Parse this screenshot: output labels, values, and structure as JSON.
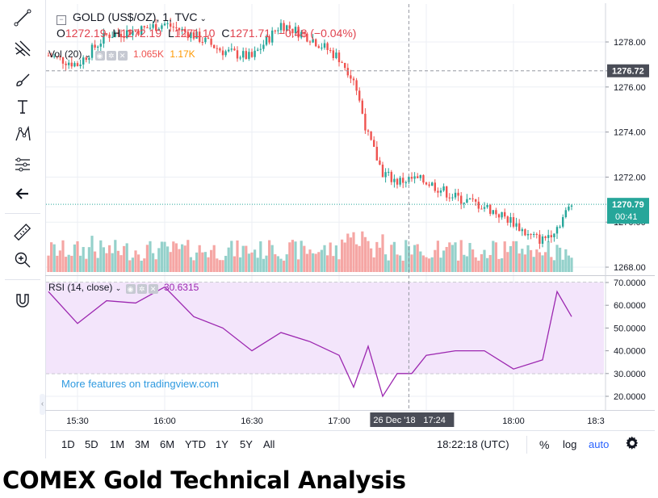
{
  "title": "COMEX Gold Technical Analysis",
  "legend": {
    "symbol": "GOLD (US$/OZ), 1, TVC",
    "o_label": "O",
    "o_value": "1272.19",
    "h_label": "H",
    "h_value": "1272.19",
    "l_label": "L",
    "l_value": "1271.10",
    "c_label": "C",
    "c_value": "1271.71",
    "change": "−0.48 (−0.04%)",
    "vol_label": "Vol (20)",
    "vol_value": "1.065K",
    "vol_ma_value": "1.17K"
  },
  "rsi_legend": {
    "label": "RSI (14, close)",
    "value": "30.6315"
  },
  "price_axis": {
    "ticks": [
      "1278.00",
      "1276.00",
      "1274.00",
      "1272.00",
      "1270.00",
      "1268.00"
    ],
    "crosshair_price": "1276.72",
    "last_price": "1270.79",
    "countdown": "00:41"
  },
  "rsi_axis": {
    "ticks": [
      "70.0000",
      "60.0000",
      "50.0000",
      "40.0000",
      "30.0000",
      "20.0000"
    ]
  },
  "time_axis": {
    "ticks": [
      "15:30",
      "16:00",
      "16:30",
      "17:00",
      "18:00",
      "18:3"
    ],
    "crosshair_label": "26 Dec '18",
    "crosshair_time": "17:24"
  },
  "promo": "More features on tradingview.com",
  "bottom_bar": {
    "ranges": [
      "1D",
      "5D",
      "1M",
      "3M",
      "6M",
      "YTD",
      "1Y",
      "5Y",
      "All"
    ],
    "clock": "18:22:18 (UTC)",
    "percent": "%",
    "log": "log",
    "auto": "auto"
  },
  "colors": {
    "up": "#26a69a",
    "down": "#ef5350",
    "vol_up": "#95d1cb",
    "vol_down": "#f5a6a4",
    "rsi_line": "#9c27b0",
    "rsi_band": "#f3e5fb",
    "grid": "#eceff4",
    "last_price": "#26a69a",
    "crosshair_label": "#4a4d57",
    "link": "#2f9ae0"
  },
  "icons": [
    "trendline-icon",
    "pitchfork-icon",
    "brush-icon",
    "text-icon",
    "pattern-icon",
    "fib-icon",
    "back-arrow-icon",
    "ruler-icon",
    "zoom-in-icon",
    "magnet-icon",
    "gear-icon"
  ],
  "chart_data": {
    "type": "line",
    "symbol": "GOLD (US$/OZ)",
    "interval": "1 minute",
    "date": "26 Dec '18",
    "price_ylim": [
      1267.7,
      1279.3
    ],
    "rsi_ylim": [
      16.5,
      71.5
    ],
    "rsi_bands": [
      30,
      70
    ],
    "price_x": [
      "15:20",
      "15:30",
      "15:40",
      "15:50",
      "16:00",
      "16:10",
      "16:20",
      "16:30",
      "16:40",
      "16:50",
      "17:00",
      "17:05",
      "17:10",
      "17:15",
      "17:20",
      "17:25",
      "17:30",
      "17:40",
      "17:50",
      "18:00",
      "18:05",
      "18:10",
      "18:15",
      "18:20"
    ],
    "price_close": [
      1277.4,
      1277.0,
      1278.3,
      1278.5,
      1278.8,
      1278.3,
      1277.6,
      1277.3,
      1278.8,
      1278.2,
      1277.3,
      1276.4,
      1273.8,
      1272.2,
      1271.8,
      1271.9,
      1271.8,
      1271.1,
      1270.7,
      1270.0,
      1269.4,
      1269.2,
      1269.8,
      1270.8
    ],
    "series": [
      {
        "name": "RSI (14, close)",
        "x": [
          "15:20",
          "15:30",
          "15:40",
          "15:50",
          "16:00",
          "16:10",
          "16:20",
          "16:30",
          "16:40",
          "16:50",
          "17:00",
          "17:05",
          "17:10",
          "17:15",
          "17:20",
          "17:25",
          "17:30",
          "17:40",
          "17:50",
          "18:00",
          "18:10",
          "18:15",
          "18:20"
        ],
        "values": [
          66,
          52,
          62,
          61,
          68,
          55,
          50,
          40,
          48,
          44,
          38,
          24,
          42,
          20,
          30,
          30,
          38,
          40,
          40,
          32,
          36,
          66,
          55
        ]
      }
    ]
  }
}
